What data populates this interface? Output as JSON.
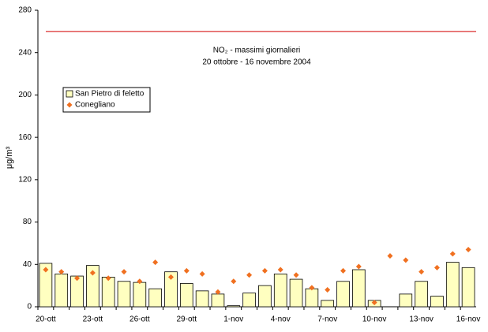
{
  "chart_data": {
    "type": "bar_scatter",
    "title": "NO₂ - massimi giornalieri",
    "subtitle": "20 ottobre - 16 novembre 2004",
    "y_label": "μg/m³",
    "categories": [
      "20-ott",
      null,
      null,
      "23-ott",
      null,
      null,
      "26-ott",
      null,
      null,
      "29-ott",
      null,
      null,
      "1-nov",
      null,
      null,
      "4-nov",
      null,
      null,
      "7-nov",
      null,
      null,
      "10-nov",
      null,
      null,
      "13-nov",
      null,
      null,
      "16-nov"
    ],
    "series": [
      {
        "name": "San Pietro di feletto",
        "kind": "bar",
        "color": "#ffffc0",
        "values": [
          41,
          31,
          29,
          39,
          28,
          24,
          23,
          17,
          33,
          22,
          15,
          12,
          1,
          13,
          20,
          31,
          26,
          17,
          6,
          24,
          35,
          6,
          null,
          12,
          24,
          10,
          42,
          37
        ]
      },
      {
        "name": "Conegliano",
        "kind": "marker",
        "color": "#f07020",
        "values": [
          35,
          33,
          27,
          32,
          27,
          33,
          24,
          42,
          28,
          34,
          31,
          14,
          24,
          30,
          34,
          35,
          30,
          18,
          16,
          34,
          38,
          4,
          48,
          44,
          33,
          37,
          50,
          54
        ]
      }
    ],
    "reference_line": {
      "value": 260,
      "color": "#e05050"
    },
    "ylim": [
      0,
      280
    ],
    "yticks": [
      0,
      40,
      80,
      120,
      160,
      200,
      240,
      280
    ]
  }
}
